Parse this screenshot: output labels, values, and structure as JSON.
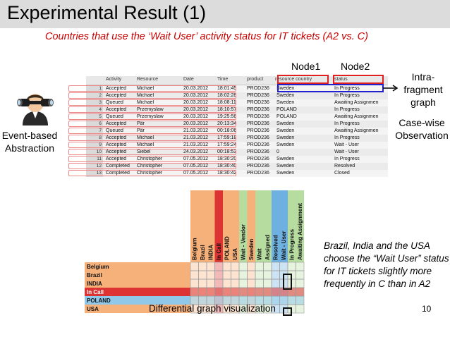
{
  "slide": {
    "title": "Experimental Result (1)",
    "subtitle": "Countries that use the ‘Wait User’ activity status for IT tickets (A2 vs. C)",
    "node1": "Node1",
    "node2": "Node2",
    "intra_label": "Intra-fragment graph",
    "casewise_label": "Case-wise Observation",
    "event_label": "Event-based Abstraction",
    "note": "Brazil, India and the USA choose the “Wait User” status for IT tickets slightly more frequently in C than in A2",
    "diff_label": "Differential graph visualization",
    "page_number": "10"
  },
  "event_table": {
    "headers": [
      "Activity",
      "Resource",
      "Date",
      "Time",
      "product",
      "resource country",
      "status"
    ],
    "rows": [
      [
        "1",
        "Accepted",
        "Michael",
        "20.03.2012",
        "18:01:45",
        "PROD236",
        "Sweden",
        "In Progress"
      ],
      [
        "2",
        "Accepted",
        "Michael",
        "20.03.2012",
        "18:02:28",
        "PROD236",
        "Sweden",
        "In Progress"
      ],
      [
        "3",
        "Queued",
        "Michael",
        "20.03.2012",
        "18:08:11",
        "PROD236",
        "Sweden",
        "Awaiting Assignmen"
      ],
      [
        "4",
        "Accepted",
        "Przemyslaw",
        "20.03.2012",
        "18:10:57",
        "PROD236",
        "POLAND",
        "In Progress"
      ],
      [
        "5",
        "Queued",
        "Przemyslaw",
        "20.03.2012",
        "19:25:56",
        "PROD236",
        "POLAND",
        "Awaiting Assignmen"
      ],
      [
        "6",
        "Accepted",
        "Pär",
        "20.03.2012",
        "20:13:34",
        "PROD236",
        "Sweden",
        "In Progress"
      ],
      [
        "7",
        "Queued",
        "Pär",
        "21.03.2012",
        "00:18:06",
        "PROD236",
        "Sweden",
        "Awaiting Assignmen"
      ],
      [
        "8",
        "Accepted",
        "Michael",
        "21.03.2012",
        "17:59:18",
        "PROD236",
        "Sweden",
        "In Progress"
      ],
      [
        "9",
        "Accepted",
        "Michael",
        "21.03.2012",
        "17:59:24",
        "PROD236",
        "Sweden",
        "Wait - User"
      ],
      [
        "10",
        "Accepted",
        "Siebel",
        "24.03.2012",
        "00:18:53",
        "PROD236",
        "0",
        "Wait - User"
      ],
      [
        "11",
        "Accepted",
        "Christopher",
        "07.05.2012",
        "18:30:20",
        "PROD236",
        "Sweden",
        "In Progress"
      ],
      [
        "12",
        "Completed",
        "Christopher",
        "07.05.2012",
        "18:30:40",
        "PROD236",
        "Sweden",
        "Resolved"
      ],
      [
        "13",
        "Completed",
        "Christopher",
        "07.05.2012",
        "18:30:42",
        "PROD236",
        "Sweden",
        "Closed"
      ]
    ]
  },
  "heatmap": {
    "columns": [
      "Belgium",
      "Brazil",
      "INDIA",
      "In Call",
      "POLAND",
      "USA",
      "Wait - Vendor",
      "Sweden",
      "Wait",
      "Assigned",
      "Resolved",
      "Wait - User",
      "In Progress",
      "Awaiting Assignment"
    ],
    "column_colors": [
      "#f6b17a",
      "#f6b17a",
      "#f6b17a",
      "#dd3333",
      "#f6b17a",
      "#f6b17a",
      "#b6dca0",
      "#f6b17a",
      "#b6dca0",
      "#b6dca0",
      "#6eb0e0",
      "#6eb0e0",
      "#b6dca0",
      "#b6dca0"
    ],
    "rows": [
      "Belgium",
      "Brazil",
      "INDIA",
      "In Call",
      "POLAND",
      "USA"
    ],
    "row_colors": [
      "#f6b17a",
      "#f6b17a",
      "#f6b17a",
      "#dd3333",
      "#8fc8e8",
      "#f6b17a"
    ]
  }
}
